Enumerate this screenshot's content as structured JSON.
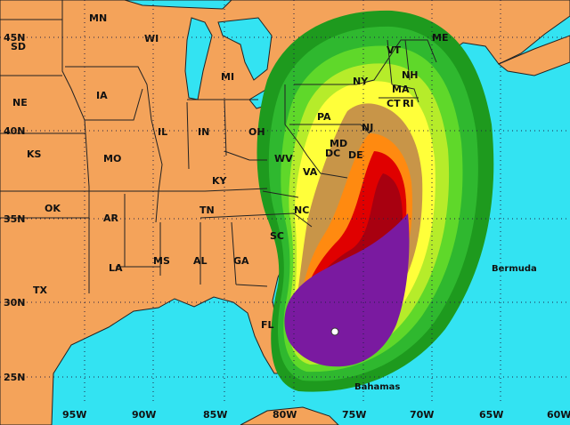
{
  "map": {
    "colors": {
      "ocean": "#33e3f2",
      "land": "#f4a35a",
      "swath": [
        "#1e9a1e",
        "#2fb82f",
        "#5fd82a",
        "#b6ec2a",
        "#ffff3a",
        "#c89548",
        "#ff8a10",
        "#e00000",
        "#a80010",
        "#7a1aa0"
      ],
      "center_marker": "#ffffff"
    },
    "latitude_labels": [
      "45N",
      "40N",
      "35N",
      "30N",
      "25N"
    ],
    "longitude_labels": [
      "95W",
      "90W",
      "85W",
      "80W",
      "75W",
      "70W",
      "65W",
      "60W"
    ],
    "states": [
      "MN",
      "SD",
      "WI",
      "MI",
      "IA",
      "NE",
      "IL",
      "IN",
      "OH",
      "KS",
      "MO",
      "KY",
      "WV",
      "VA",
      "PA",
      "NY",
      "VT",
      "NH",
      "MA",
      "CT",
      "RI",
      "ME",
      "NJ",
      "MD",
      "DC",
      "DE",
      "NC",
      "TN",
      "OK",
      "AR",
      "SC",
      "LA",
      "MS",
      "AL",
      "GA",
      "TX",
      "FL"
    ],
    "places": [
      "Bermuda",
      "Bahamas"
    ]
  }
}
